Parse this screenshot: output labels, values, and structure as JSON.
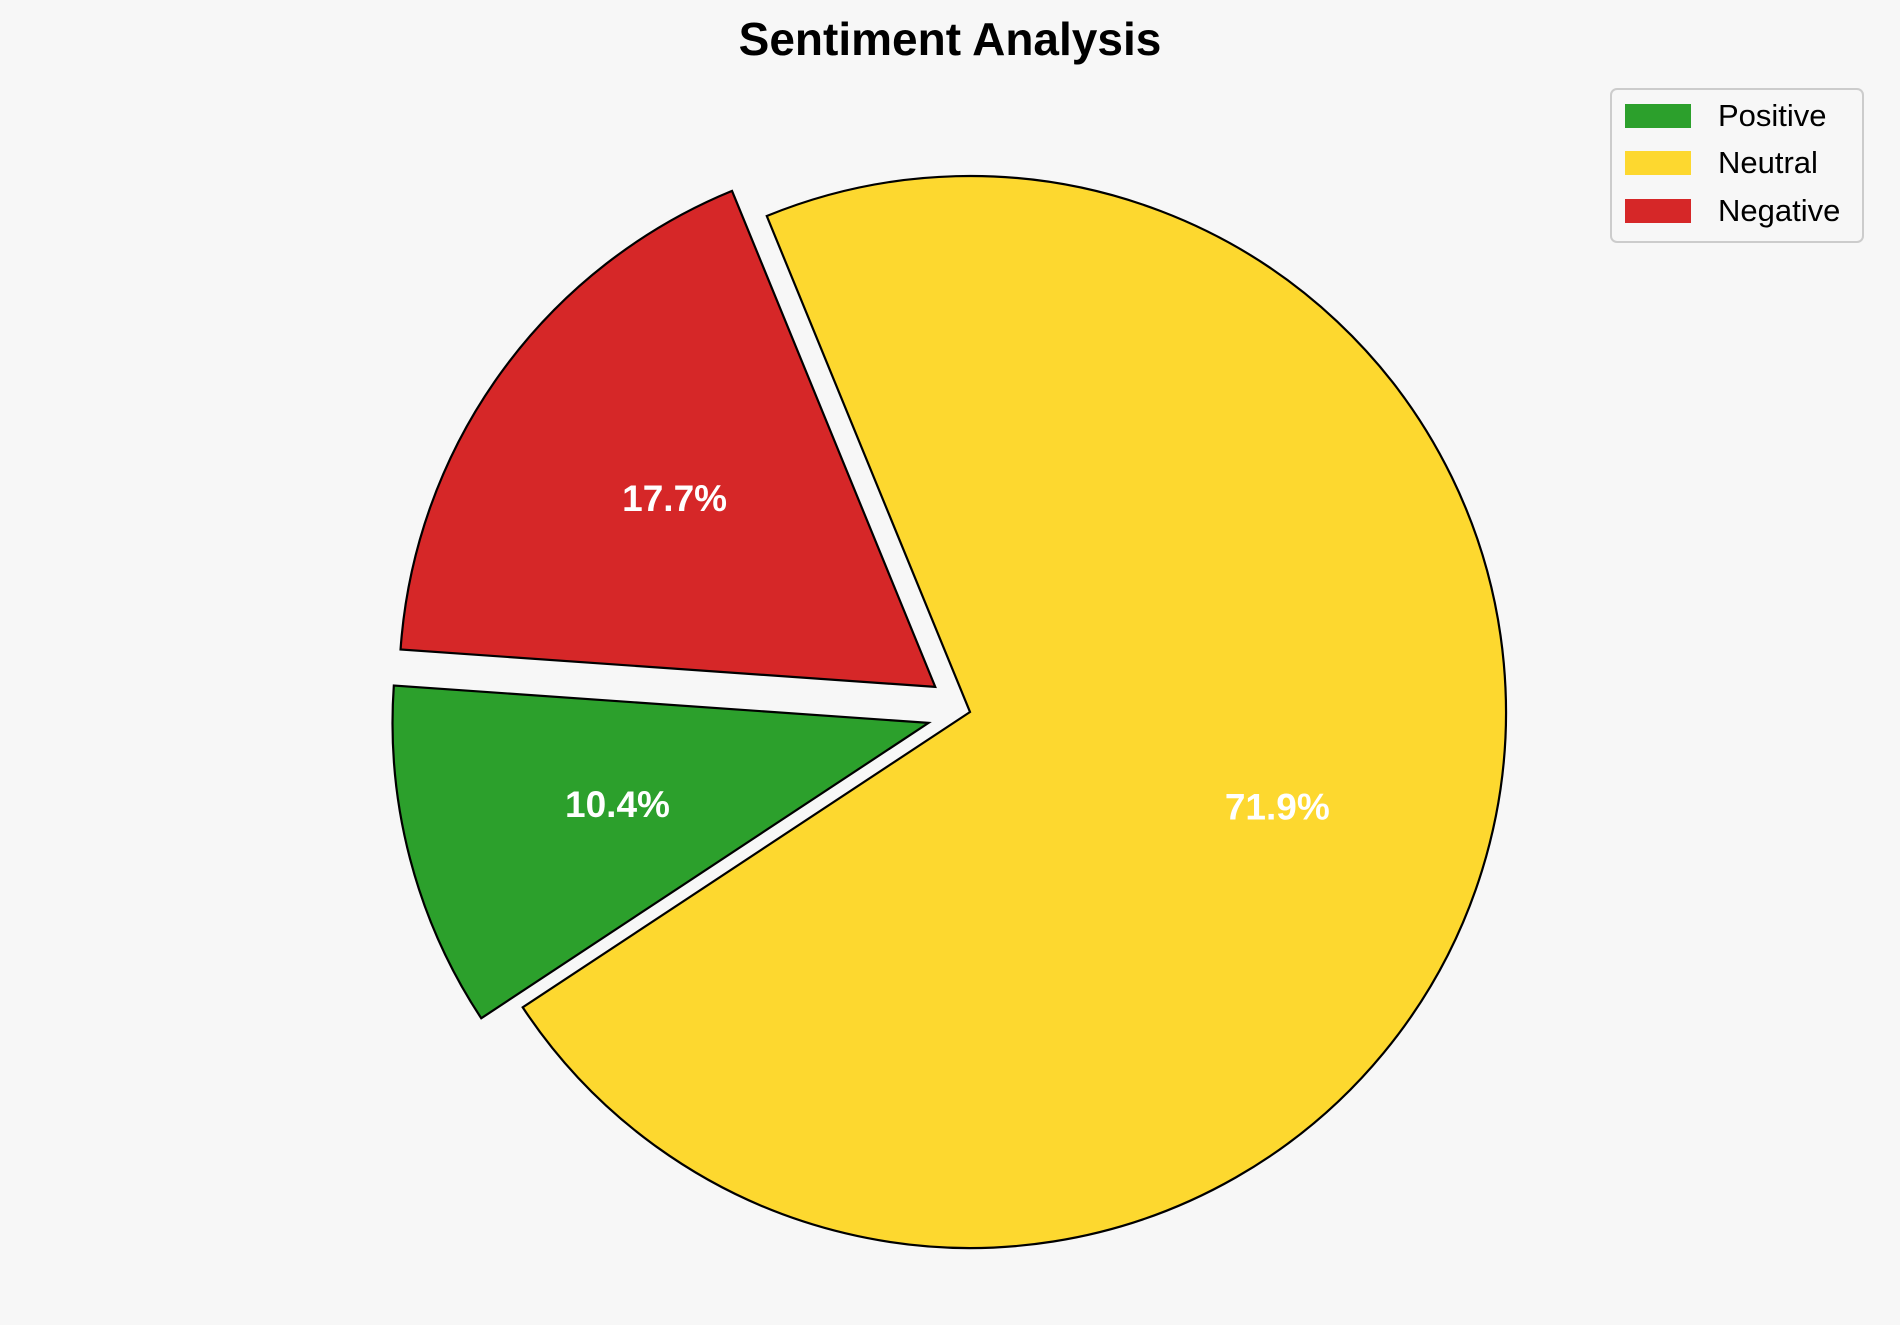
{
  "chart_data": {
    "type": "pie",
    "title": "Sentiment Analysis",
    "labels": [
      "Positive",
      "Neutral",
      "Negative"
    ],
    "values": [
      10.4,
      71.9,
      17.7
    ],
    "value_labels": [
      "10.4%",
      "71.9%",
      "17.7%"
    ],
    "colors": [
      "#2ca02c",
      "#fdd82f",
      "#d62728"
    ],
    "exploded": [
      true,
      false,
      true
    ],
    "legend_position": "top-right"
  }
}
